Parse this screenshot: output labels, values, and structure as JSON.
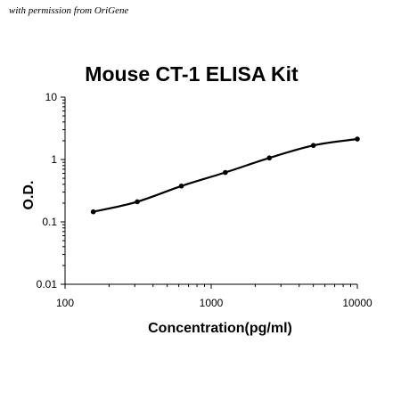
{
  "permission_text": "with permission from OriGene",
  "chart_data": {
    "type": "line",
    "title": "Mouse CT-1 ELISA Kit",
    "xlabel": "Concentration(pg/ml)",
    "ylabel": "O.D.",
    "x_scale": "log",
    "y_scale": "log",
    "xlim": [
      100,
      10000
    ],
    "ylim": [
      0.01,
      10
    ],
    "x_ticks": [
      100,
      1000,
      10000
    ],
    "x_tick_labels": [
      "100",
      "1000",
      "10000"
    ],
    "y_ticks": [
      0.01,
      0.1,
      1,
      10
    ],
    "y_tick_labels": [
      "0.01",
      "0.1",
      "1",
      "10"
    ],
    "grid": false,
    "series": [
      {
        "x": [
          156,
          312,
          625,
          1250,
          2500,
          5000,
          10000
        ],
        "y": [
          0.145,
          0.21,
          0.375,
          0.62,
          1.06,
          1.68,
          2.13
        ],
        "color": "#000000"
      }
    ]
  }
}
